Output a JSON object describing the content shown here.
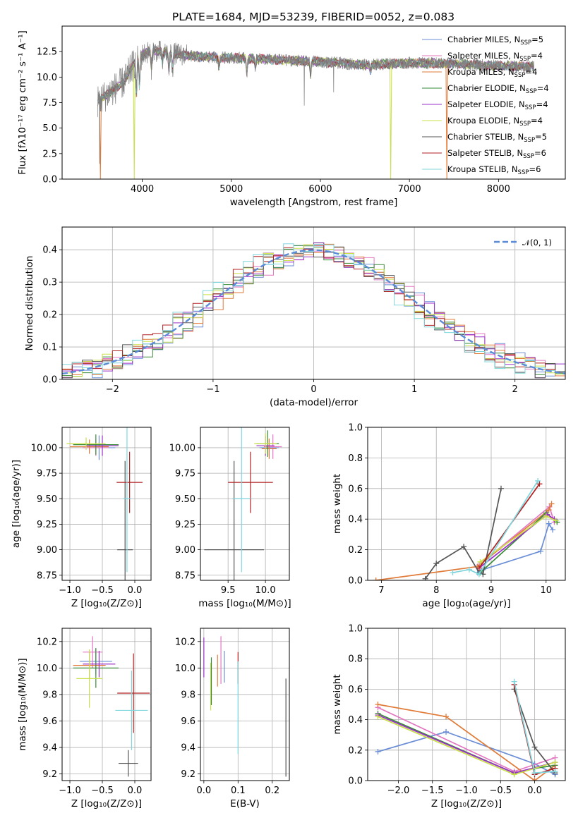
{
  "chart_data": [
    {
      "type": "line",
      "title": "PLATE=1684, MJD=53239, FIBERID=0052, z=0.083",
      "xlabel": "wavelength [Angstrom, rest frame]",
      "ylabel": "Flux [fλ10⁻¹⁷ erg cm⁻² s⁻¹ A⁻¹]",
      "xlim": [
        3100,
        8750
      ],
      "ylim": [
        0,
        15
      ],
      "xticks": [
        "4000",
        "5000",
        "6000",
        "7000",
        "8000"
      ],
      "yticks": [
        "0.0",
        "2.5",
        "5.0",
        "7.5",
        "10.0",
        "12.5"
      ],
      "grid": false,
      "legend": "upper right",
      "series": [
        {
          "name": "Chabrier MILES, N_SSP=5",
          "label": "Chabrier MILES, N",
          "sub": "SSP",
          "suffix": "=5",
          "color": "#6b8ed6"
        },
        {
          "name": "Salpeter MILES, N_SSP=4",
          "label": "Salpeter MILES, N",
          "sub": "SSP",
          "suffix": "=4",
          "color": "#e377c2"
        },
        {
          "name": "Kroupa MILES, N_SSP=4",
          "label": "Kroupa MILES, N",
          "sub": "SSP",
          "suffix": "=4",
          "color": "#e07b39"
        },
        {
          "name": "Chabrier ELODIE, N_SSP=4",
          "label": "Chabrier ELODIE, N",
          "sub": "SSP",
          "suffix": "=4",
          "color": "#3a8a3a"
        },
        {
          "name": "Salpeter ELODIE, N_SSP=4",
          "label": "Salpeter ELODIE, N",
          "sub": "SSP",
          "suffix": "=4",
          "color": "#9b30c8"
        },
        {
          "name": "Kroupa ELODIE, N_SSP=4",
          "label": "Kroupa ELODIE, N",
          "sub": "SSP",
          "suffix": "=4",
          "color": "#c9e04a"
        },
        {
          "name": "Chabrier STELIB, N_SSP=5",
          "label": "Chabrier STELIB, N",
          "sub": "SSP",
          "suffix": "=5",
          "color": "#555555"
        },
        {
          "name": "Salpeter STELIB, N_SSP=6",
          "label": "Salpeter STELIB, N",
          "sub": "SSP",
          "suffix": "=6",
          "color": "#b22222"
        },
        {
          "name": "Kroupa STELIB, N_SSP=6",
          "label": "Kroupa STELIB, N",
          "sub": "SSP",
          "suffix": "=6",
          "color": "#7fd6dd"
        }
      ],
      "data_color": "#808080",
      "continuum_x": [
        3500,
        3620,
        3800,
        3950,
        4100,
        4300,
        4600,
        5000,
        5500,
        6000,
        6500,
        7000,
        7500,
        8000,
        8400
      ],
      "continuum_y": [
        7.6,
        8.4,
        9.6,
        12.0,
        12.6,
        12.4,
        12.0,
        11.9,
        11.7,
        11.5,
        11.2,
        11.4,
        11.3,
        11.1,
        11.0
      ],
      "absorption_lines": [
        {
          "x": 3934,
          "depth": 3.5
        },
        {
          "x": 3968,
          "depth": 3.0
        },
        {
          "x": 4102,
          "depth": 1.8
        },
        {
          "x": 4227,
          "depth": 1.2
        },
        {
          "x": 4300,
          "depth": 1.8
        },
        {
          "x": 4340,
          "depth": 1.5
        },
        {
          "x": 4861,
          "depth": 1.0
        },
        {
          "x": 5175,
          "depth": 1.4
        },
        {
          "x": 5270,
          "depth": 0.8
        },
        {
          "x": 5890,
          "depth": 1.3
        },
        {
          "x": 6563,
          "depth": 0.8
        }
      ],
      "data_glitches": [
        {
          "x": 3520,
          "y": 1.5
        },
        {
          "x": 5820,
          "y": 7.2
        },
        {
          "x": 6150,
          "y": 8.5
        }
      ],
      "model_dropouts": [
        {
          "x0": 3520,
          "x1": 3540,
          "y": 0,
          "color": "#e07b39"
        },
        {
          "x0": 3900,
          "x1": 3920,
          "y": 0,
          "color": "#c9e04a"
        },
        {
          "x0": 6780,
          "x1": 6800,
          "y": 0,
          "color": "#c9e04a"
        },
        {
          "x0": 7410,
          "x1": 7430,
          "y": 0,
          "color": "#e07b39"
        }
      ]
    },
    {
      "type": "line",
      "xlabel": "(data-model)/error",
      "ylabel": "Normed distribution",
      "xlim": [
        -2.5,
        2.5
      ],
      "ylim": [
        0,
        0.47
      ],
      "xticks": [
        "−2",
        "−1",
        "0",
        "1",
        "2"
      ],
      "yticks": [
        "0.0",
        "0.1",
        "0.2",
        "0.3",
        "0.4"
      ],
      "grid": true,
      "legend": "upper right",
      "legend_label": "𝒩(0, 1)",
      "gauss_color": "#5b8bd6",
      "bin_width": 0.1
    },
    {
      "type": "scatter",
      "xlabel": "Z [log₁₀(Z/Z⊙)]",
      "ylabel": "age  [log₁₀(age/yr)]",
      "xlim": [
        -1.12,
        0.25
      ],
      "ylim": [
        8.7,
        10.2
      ],
      "xticks": [
        "−1.0",
        "−0.5",
        "0.0"
      ],
      "yticks": [
        "8.75",
        "9.00",
        "9.25",
        "9.50",
        "9.75",
        "10.00"
      ],
      "grid": true,
      "points": [
        {
          "x": -0.55,
          "y": 10.0,
          "xerr": 0.25,
          "yerr": 0.12,
          "color": "#6b8ed6"
        },
        {
          "x": -0.6,
          "y": 10.0,
          "xerr": 0.2,
          "yerr": 0.08,
          "color": "#e377c2"
        },
        {
          "x": -0.7,
          "y": 10.01,
          "xerr": 0.3,
          "yerr": 0.07,
          "color": "#e07b39"
        },
        {
          "x": -0.6,
          "y": 10.03,
          "xerr": 0.35,
          "yerr": 0.1,
          "color": "#3a8a3a"
        },
        {
          "x": -0.5,
          "y": 10.02,
          "xerr": 0.25,
          "yerr": 0.1,
          "color": "#9b30c8"
        },
        {
          "x": -0.75,
          "y": 10.04,
          "xerr": 0.3,
          "yerr": 0.06,
          "color": "#c9e04a"
        },
        {
          "x": -0.15,
          "y": 9.0,
          "xerr": 0.12,
          "yerr": 0.87,
          "color": "#555555"
        },
        {
          "x": -0.08,
          "y": 9.66,
          "xerr": 0.2,
          "yerr": 0.3,
          "color": "#b22222"
        },
        {
          "x": -0.12,
          "y": 9.5,
          "xerr": 0.06,
          "yerr": 0.72,
          "color": "#7fd6dd"
        }
      ]
    },
    {
      "type": "scatter",
      "xlabel": "mass [log₁₀(M/M⊙)]",
      "ylabel": "",
      "xlim": [
        9.13,
        10.32
      ],
      "ylim": [
        8.7,
        10.2
      ],
      "xticks": [
        "9.5",
        "10.0"
      ],
      "yticks": [
        "8.75",
        "9.00",
        "9.25",
        "9.50",
        "9.75",
        "10.00"
      ],
      "grid": true,
      "points": [
        {
          "x": 10.05,
          "y": 10.0,
          "xerr": 0.13,
          "yerr": 0.08,
          "color": "#6b8ed6"
        },
        {
          "x": 10.1,
          "y": 10.01,
          "xerr": 0.12,
          "yerr": 0.12,
          "color": "#e377c2"
        },
        {
          "x": 10.05,
          "y": 9.99,
          "xerr": 0.1,
          "yerr": 0.1,
          "color": "#e07b39"
        },
        {
          "x": 10.03,
          "y": 10.04,
          "xerr": 0.15,
          "yerr": 0.13,
          "color": "#3a8a3a"
        },
        {
          "x": 10.0,
          "y": 10.02,
          "xerr": 0.12,
          "yerr": 0.1,
          "color": "#9b30c8"
        },
        {
          "x": 10.0,
          "y": 10.04,
          "xerr": 0.15,
          "yerr": 0.1,
          "color": "#c9e04a"
        },
        {
          "x": 9.58,
          "y": 9.0,
          "xerr": 0.4,
          "yerr": 0.87,
          "color": "#555555"
        },
        {
          "x": 9.8,
          "y": 9.66,
          "xerr": 0.3,
          "yerr": 0.3,
          "color": "#b22222"
        },
        {
          "x": 9.68,
          "y": 9.5,
          "xerr": 0.12,
          "yerr": 0.72,
          "color": "#7fd6dd"
        }
      ]
    },
    {
      "type": "line",
      "xlabel": "age  [log₁₀(age/yr)]",
      "ylabel": "mass weight",
      "xlim": [
        6.75,
        10.35
      ],
      "ylim": [
        0,
        1
      ],
      "xticks": [
        "7",
        "8",
        "9",
        "10"
      ],
      "yticks": [
        "0.0",
        "0.2",
        "0.4",
        "0.6",
        "0.8",
        "1.0"
      ],
      "grid": true,
      "series": [
        {
          "color": "#6b8ed6",
          "x": [
            8.75,
            8.85,
            9.9,
            10.05,
            10.12
          ],
          "y": [
            0.05,
            0.07,
            0.19,
            0.37,
            0.33
          ]
        },
        {
          "color": "#e377c2",
          "x": [
            8.78,
            10.06,
            10.15
          ],
          "y": [
            0.1,
            0.48,
            0.38
          ]
        },
        {
          "color": "#e07b39",
          "x": [
            6.9,
            8.75,
            10.05,
            10.1
          ],
          "y": [
            0.0,
            0.09,
            0.46,
            0.5
          ]
        },
        {
          "color": "#3a8a3a",
          "x": [
            8.8,
            10.0,
            10.2
          ],
          "y": [
            0.05,
            0.44,
            0.38
          ]
        },
        {
          "color": "#9b30c8",
          "x": [
            8.78,
            10.02,
            10.15
          ],
          "y": [
            0.08,
            0.43,
            0.4
          ]
        },
        {
          "color": "#c9e04a",
          "x": [
            8.8,
            10.0,
            10.18
          ],
          "y": [
            0.12,
            0.42,
            0.39
          ]
        },
        {
          "color": "#555555",
          "x": [
            7.8,
            8.0,
            8.5,
            8.78,
            8.85,
            9.18
          ],
          "y": [
            0.01,
            0.11,
            0.22,
            0.05,
            0.04,
            0.6
          ]
        },
        {
          "color": "#b22222",
          "x": [
            8.78,
            9.88
          ],
          "y": [
            0.08,
            0.63
          ]
        },
        {
          "color": "#7fd6dd",
          "x": [
            8.3,
            8.6,
            8.78,
            9.85
          ],
          "y": [
            0.05,
            0.07,
            0.04,
            0.65
          ]
        }
      ]
    },
    {
      "type": "scatter",
      "xlabel": "Z [log₁₀(Z/Z⊙)]",
      "ylabel": "mass [log₁₀(M/M⊙)]",
      "xlim": [
        -1.12,
        0.25
      ],
      "ylim": [
        9.15,
        10.3
      ],
      "xticks": [
        "−1.0",
        "−0.5",
        "0.0"
      ],
      "yticks": [
        "9.2",
        "9.4",
        "9.6",
        "9.8",
        "10.0",
        "10.2"
      ],
      "grid": true,
      "points": [
        {
          "x": -0.6,
          "y": 10.05,
          "xerr": 0.25,
          "yerr": 0.1,
          "color": "#6b8ed6"
        },
        {
          "x": -0.65,
          "y": 10.12,
          "xerr": 0.15,
          "yerr": 0.12,
          "color": "#e377c2"
        },
        {
          "x": -0.7,
          "y": 10.02,
          "xerr": 0.25,
          "yerr": 0.1,
          "color": "#e07b39"
        },
        {
          "x": -0.6,
          "y": 10.0,
          "xerr": 0.35,
          "yerr": 0.15,
          "color": "#3a8a3a"
        },
        {
          "x": -0.55,
          "y": 10.03,
          "xerr": 0.25,
          "yerr": 0.1,
          "color": "#9b30c8"
        },
        {
          "x": -0.7,
          "y": 9.92,
          "xerr": 0.2,
          "yerr": 0.22,
          "color": "#c9e04a"
        },
        {
          "x": -0.1,
          "y": 9.28,
          "xerr": 0.15,
          "yerr": 0.1,
          "color": "#555555"
        },
        {
          "x": -0.02,
          "y": 9.81,
          "xerr": 0.25,
          "yerr": 0.3,
          "color": "#b22222"
        },
        {
          "x": -0.05,
          "y": 9.68,
          "xerr": 0.25,
          "yerr": 0.3,
          "color": "#7fd6dd"
        }
      ]
    },
    {
      "type": "scatter",
      "xlabel": "E(B-V)",
      "ylabel": "",
      "xlim": [
        -0.01,
        0.25
      ],
      "ylim": [
        9.15,
        10.3
      ],
      "xticks": [
        "0.0",
        "0.1",
        "0.2"
      ],
      "yticks": [
        "9.2",
        "9.4",
        "9.6",
        "9.8",
        "10.0",
        "10.2"
      ],
      "grid": true,
      "points": [
        {
          "x": 0.0,
          "y": 10.08,
          "yerr": 0.15,
          "color": "#9b30c8"
        },
        {
          "x": 0.02,
          "y": 9.86,
          "yerr": 0.18,
          "color": "#c9e04a"
        },
        {
          "x": 0.022,
          "y": 9.9,
          "yerr": 0.18,
          "color": "#3a8a3a"
        },
        {
          "x": 0.04,
          "y": 9.98,
          "yerr": 0.12,
          "color": "#e07b39"
        },
        {
          "x": 0.05,
          "y": 10.06,
          "yerr": 0.18,
          "color": "#e377c2"
        },
        {
          "x": 0.06,
          "y": 10.01,
          "yerr": 0.12,
          "color": "#6b8ed6"
        },
        {
          "x": 0.1,
          "y": 10.0,
          "yerr": 0.12,
          "color": "#b22222"
        },
        {
          "x": 0.1,
          "y": 9.7,
          "yerr": 0.35,
          "color": "#7fd6dd"
        },
        {
          "x": 0.24,
          "y": 9.55,
          "yerr": 0.37,
          "color": "#555555"
        }
      ]
    },
    {
      "type": "line",
      "xlabel": "Z [log₁₀(Z/Z⊙)]",
      "ylabel": "mass weight",
      "xlim": [
        -2.45,
        0.45
      ],
      "ylim": [
        0,
        1
      ],
      "xticks": [
        "−2.0",
        "−1.5",
        "−1.0",
        "−0.5",
        "0.0"
      ],
      "yticks": [
        "0.0",
        "0.2",
        "0.4",
        "0.6",
        "0.8",
        "1.0"
      ],
      "grid": true,
      "series": [
        {
          "color": "#6b8ed6",
          "x": [
            -2.3,
            -1.3,
            0.0,
            0.3
          ],
          "y": [
            0.19,
            0.32,
            0.11,
            0.04
          ]
        },
        {
          "color": "#e377c2",
          "x": [
            -2.3,
            -0.3,
            0.3
          ],
          "y": [
            0.48,
            0.06,
            0.15
          ]
        },
        {
          "color": "#e07b39",
          "x": [
            -2.3,
            -1.3,
            0.0,
            0.3
          ],
          "y": [
            0.5,
            0.42,
            0.0,
            0.1
          ]
        },
        {
          "color": "#3a8a3a",
          "x": [
            -2.3,
            -0.3,
            0.0,
            0.3
          ],
          "y": [
            0.44,
            0.05,
            0.08,
            0.1
          ]
        },
        {
          "color": "#9b30c8",
          "x": [
            -2.3,
            -0.3,
            0.3
          ],
          "y": [
            0.43,
            0.05,
            0.12
          ]
        },
        {
          "color": "#c9e04a",
          "x": [
            -2.3,
            -0.3,
            0.3
          ],
          "y": [
            0.42,
            0.04,
            0.12
          ]
        },
        {
          "color": "#555555",
          "x": [
            -0.3,
            0.0,
            0.3
          ],
          "y": [
            0.6,
            0.22,
            0.05
          ]
        },
        {
          "color": "#b22222",
          "x": [
            -0.3,
            0.0,
            0.3
          ],
          "y": [
            0.63,
            0.04,
            0.08
          ]
        },
        {
          "color": "#7fd6dd",
          "x": [
            -0.3,
            0.0,
            0.3
          ],
          "y": [
            0.65,
            0.05,
            0.06
          ]
        }
      ]
    }
  ]
}
